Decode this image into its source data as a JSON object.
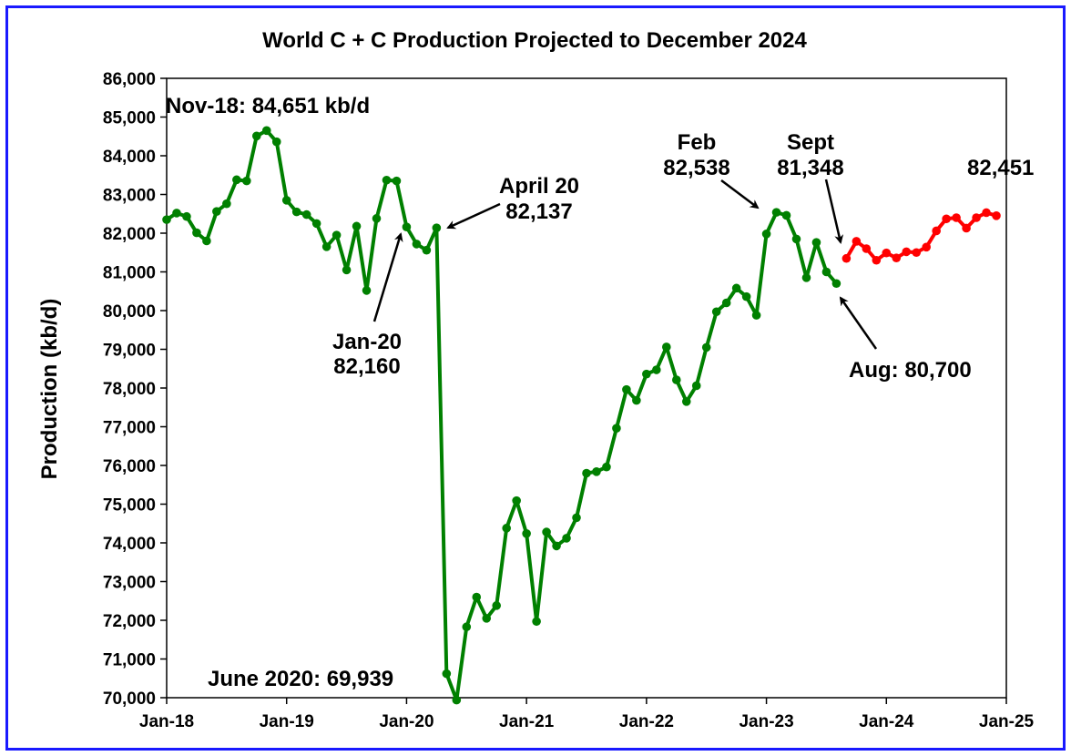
{
  "chart_data": {
    "type": "line",
    "title": "World C + C Production Projected to December 2024",
    "ylabel": "Production (kb/d)",
    "xlabel": "",
    "ylim": [
      70000,
      86000
    ],
    "yticks": [
      "70,000",
      "71,000",
      "72,000",
      "73,000",
      "74,000",
      "75,000",
      "76,000",
      "77,000",
      "78,000",
      "79,000",
      "80,000",
      "81,000",
      "82,000",
      "83,000",
      "84,000",
      "85,000",
      "86,000"
    ],
    "xticks": [
      "Jan-18",
      "Jan-19",
      "Jan-20",
      "Jan-21",
      "Jan-22",
      "Jan-23",
      "Jan-24",
      "Jan-25"
    ],
    "grid": false,
    "legend": "none",
    "colors": {
      "actual": "#008000",
      "projected": "#ff0000",
      "frame": "#1a1aff"
    },
    "series": [
      {
        "start": "2018-01",
        "values": [
          82350,
          82520,
          82430,
          82010,
          81800,
          82560,
          82760,
          83380,
          83350,
          84510,
          84651,
          84360,
          82850,
          82550,
          82480,
          82250,
          81650,
          81950,
          81050,
          82180,
          80520,
          82380,
          83370,
          83350,
          82160,
          81720,
          81560,
          82137,
          70620,
          69939,
          71830,
          72600,
          72050,
          72380,
          74380,
          75090,
          74240,
          71970,
          74280,
          73920,
          74120,
          74650,
          75800,
          75840,
          75960,
          76960,
          77960,
          77680,
          78360,
          78470,
          79060,
          78210,
          77650,
          78060,
          79050,
          79970,
          80200,
          80580,
          80360,
          79880,
          81980,
          82538,
          82460,
          81850,
          80850,
          81760,
          81000,
          80700
        ]
      },
      {
        "start": "2023-09",
        "values": [
          81348,
          81790,
          81600,
          81300,
          81490,
          81360,
          81520,
          81500,
          81640,
          82060,
          82370,
          82400,
          82130,
          82400,
          82530,
          82451
        ]
      }
    ],
    "annotations": [
      {
        "text": "Nov-18: 84,651 kb/d"
      },
      {
        "lines": [
          "April 20",
          "82,137"
        ]
      },
      {
        "lines": [
          "Jan-20",
          "82,160"
        ]
      },
      {
        "text": "June 2020: 69,939"
      },
      {
        "lines": [
          "Feb",
          "82,538"
        ]
      },
      {
        "lines": [
          "Sept",
          "81,348"
        ]
      },
      {
        "text": "82,451"
      },
      {
        "text": "Aug: 80,700"
      }
    ]
  }
}
